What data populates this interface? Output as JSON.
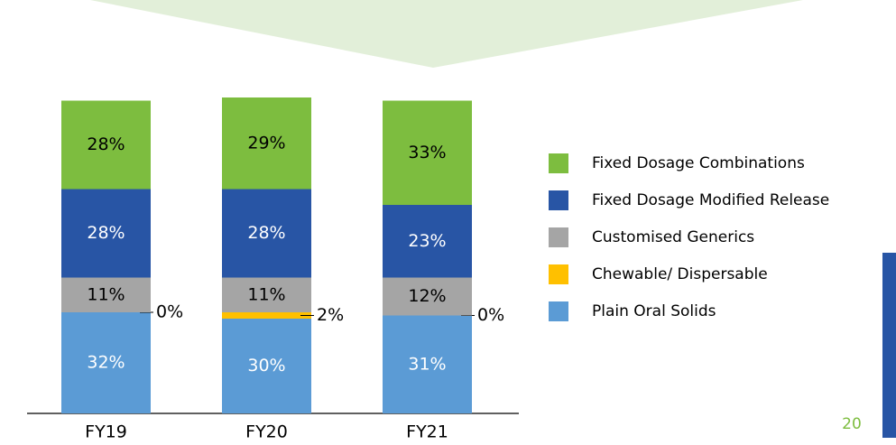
{
  "chart_data": {
    "type": "stacked_bar",
    "categories": [
      "FY19",
      "FY20",
      "FY21"
    ],
    "series": [
      {
        "name": "Plain Oral Solids",
        "color": "#5b9bd5",
        "label_color": "#ffffff",
        "values": [
          32,
          30,
          31
        ],
        "value_labels": [
          "32%",
          "30%",
          "31%"
        ]
      },
      {
        "name": "Chewable/ Dispersable",
        "color": "#ffc000",
        "label_color": "#000000",
        "label_position": "outside",
        "values": [
          0,
          2,
          0
        ],
        "value_labels": [
          "0%",
          "2%",
          "0%"
        ]
      },
      {
        "name": "Customised Generics",
        "color": "#a5a5a5",
        "label_color": "#000000",
        "values": [
          11,
          11,
          12
        ],
        "value_labels": [
          "11%",
          "11%",
          "12%"
        ]
      },
      {
        "name": "Fixed Dosage Modified Release",
        "color": "#2855a5",
        "label_color": "#ffffff",
        "values": [
          28,
          28,
          23
        ],
        "value_labels": [
          "28%",
          "28%",
          "23%"
        ]
      },
      {
        "name": "Fixed Dosage Combinations",
        "color": "#7dbd3f",
        "label_color": "#000000",
        "values": [
          28,
          29,
          33
        ],
        "value_labels": [
          "28%",
          "29%",
          "33%"
        ]
      }
    ]
  },
  "page_number": "20"
}
